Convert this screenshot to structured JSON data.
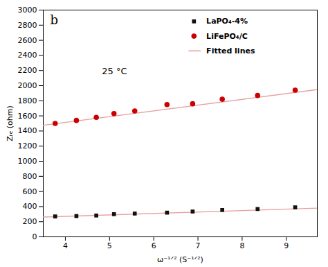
{
  "chart_data": {
    "type": "scatter",
    "title": "b",
    "annotations": [
      "25 °C"
    ],
    "xlabel": "ω⁻¹ᐟ² (S⁻¹ᐟ²)",
    "ylabel": "Zᵣₑ (ohm)",
    "xlim": [
      3.5,
      9.7
    ],
    "ylim": [
      0,
      3000
    ],
    "xticks": [
      4,
      5,
      6,
      7,
      8,
      9
    ],
    "yticks": [
      0,
      200,
      400,
      600,
      800,
      1000,
      1200,
      1400,
      1600,
      1800,
      2000,
      2200,
      2400,
      2600,
      2800,
      3000
    ],
    "grid": false,
    "legend": "upper right",
    "series": [
      {
        "name": "LaPO₄-4%",
        "type": "scatter",
        "color": "#111111",
        "marker": "square",
        "x": [
          3.77,
          4.25,
          4.7,
          5.1,
          5.57,
          6.3,
          6.88,
          7.55,
          8.35,
          9.2
        ],
        "values": [
          270,
          275,
          282,
          300,
          308,
          320,
          335,
          355,
          368,
          390
        ]
      },
      {
        "name": "LiFePO₄/C",
        "type": "scatter",
        "color": "#cc0000",
        "marker": "circle",
        "x": [
          3.77,
          4.25,
          4.7,
          5.1,
          5.57,
          6.3,
          6.88,
          7.55,
          8.35,
          9.2
        ],
        "values": [
          1500,
          1540,
          1580,
          1630,
          1665,
          1750,
          1760,
          1820,
          1870,
          1940
        ]
      },
      {
        "name": "Fitted lines",
        "type": "line",
        "color": "#e8a0a0",
        "line_style": "solid",
        "x": [
          3.5,
          9.7,
          null,
          3.5,
          9.7
        ],
        "values": [
          261.5,
          379.3,
          null,
          1476,
          1947.2
        ]
      }
    ]
  }
}
